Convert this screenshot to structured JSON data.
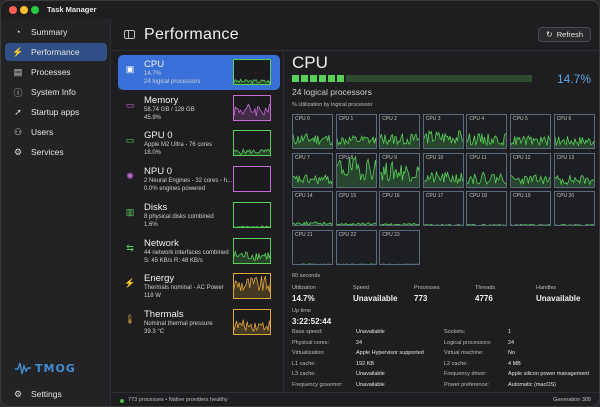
{
  "app": {
    "title": "Task Manager"
  },
  "sidebar": {
    "items": [
      {
        "label": "Summary",
        "icon": "speedometer-icon",
        "glyph": "◔"
      },
      {
        "label": "Performance",
        "icon": "activity-icon",
        "glyph": "⚡"
      },
      {
        "label": "Processes",
        "icon": "list-icon",
        "glyph": "▤"
      },
      {
        "label": "System Info",
        "icon": "info-icon",
        "glyph": "ⓘ"
      },
      {
        "label": "Startup apps",
        "icon": "rocket-icon",
        "glyph": "➚"
      },
      {
        "label": "Users",
        "icon": "users-icon",
        "glyph": "⚇"
      },
      {
        "label": "Services",
        "icon": "gear-icon",
        "glyph": "⚙"
      }
    ],
    "logo_text": "TMOG",
    "settings_label": "Settings",
    "settings_glyph": "⚙"
  },
  "header": {
    "title": "Performance",
    "refresh_label": "Refresh",
    "refresh_glyph": "↻"
  },
  "resources": [
    {
      "name": "CPU",
      "line1": "14.7%",
      "line2": "24 logical processors",
      "icon": "cpu-icon",
      "glyph": "▣",
      "color": "#58d15a"
    },
    {
      "name": "Memory",
      "line1": "58.74 GB / 128 GB",
      "line2": "45.9%",
      "icon": "memory-icon",
      "glyph": "▭",
      "color": "#c86ad8"
    },
    {
      "name": "GPU 0",
      "line1": "Apple M2 Ultra - 76 cores",
      "line2": "18.0%",
      "icon": "gpu-icon",
      "glyph": "▭",
      "color": "#58d15a"
    },
    {
      "name": "NPU 0",
      "line1": "2 Neural Engines - 32 cores - h...",
      "line2": "0.0% engines powered",
      "icon": "brain-icon",
      "glyph": "✺",
      "color": "#c86ad8"
    },
    {
      "name": "Disks",
      "line1": "8 physical disks combined",
      "line2": "1.6%",
      "icon": "disk-icon",
      "glyph": "▥",
      "color": "#58d15a"
    },
    {
      "name": "Network",
      "line1": "44 network interfaces combined",
      "line2": "S: 45 KB/s  R: 48 KB/s",
      "icon": "network-icon",
      "glyph": "⇆",
      "color": "#58d15a"
    },
    {
      "name": "Energy",
      "line1": "Thermals nominal - AC Power",
      "line2": "118 W",
      "icon": "bolt-icon",
      "glyph": "⚡",
      "color": "#e0a43a"
    },
    {
      "name": "Thermals",
      "line1": "Nominal thermal pressure",
      "line2": "39.3 °C",
      "icon": "thermometer-icon",
      "glyph": "🌡",
      "color": "#e0a43a"
    }
  ],
  "cpu": {
    "title": "CPU",
    "percent": "14.7%",
    "percent_value": 14.7,
    "subtitle": "24 logical processors",
    "util_label": "% Utilization by logical processor",
    "window_label": "60 seconds",
    "cores": [
      "CPU 0",
      "CPU 1",
      "CPU 2",
      "CPU 3",
      "CPU 4",
      "CPU 5",
      "CPU 6",
      "CPU 7",
      "CPU 8",
      "CPU 9",
      "CPU 10",
      "CPU 11",
      "CPU 12",
      "CPU 13",
      "CPU 14",
      "CPU 15",
      "CPU 16",
      "CPU 17",
      "CPU 18",
      "CPU 19",
      "CPU 20",
      "CPU 21",
      "CPU 22",
      "CPU 23"
    ],
    "core_levels": [
      0.3,
      0.25,
      0.3,
      0.35,
      0.3,
      0.25,
      0.25,
      0.25,
      0.6,
      0.5,
      0.3,
      0.3,
      0.25,
      0.25,
      0.08,
      0.06,
      0.05,
      0.03,
      0.03,
      0.03,
      0.03,
      0.02,
      0.02,
      0.02
    ],
    "stats": [
      {
        "label": "Utilization",
        "value": "14.7%"
      },
      {
        "label": "Speed",
        "value": "Unavailable"
      },
      {
        "label": "Processes",
        "value": "773"
      },
      {
        "label": "Threads",
        "value": "4776"
      },
      {
        "label": "Handles",
        "value": "Unavailable"
      }
    ],
    "uptime": {
      "label": "Up time",
      "value": "3:22:52:44"
    },
    "details_left": [
      {
        "label": "Base speed:",
        "value": "Unavailable"
      },
      {
        "label": "Physical cores:",
        "value": "24"
      },
      {
        "label": "Virtualization:",
        "value": "Apple Hypervisor supported"
      },
      {
        "label": "L1 cache:",
        "value": "192 KB"
      },
      {
        "label": "L3 cache:",
        "value": "Unavailable"
      },
      {
        "label": "Frequency governor:",
        "value": "Unavailable"
      }
    ],
    "details_right": [
      {
        "label": "Sockets:",
        "value": "1"
      },
      {
        "label": "Logical processors:",
        "value": "24"
      },
      {
        "label": "Virtual machine:",
        "value": "No"
      },
      {
        "label": "L2 cache:",
        "value": "4 MB"
      },
      {
        "label": "Frequency driver:",
        "value": "Apple silicon power management"
      },
      {
        "label": "Power preference:",
        "value": "Automatic (macOS)"
      }
    ]
  },
  "statusbar": {
    "left": "773 processes • Native providers healthy",
    "right": "Generation 388"
  },
  "colors": {
    "accent": "#3a71d9",
    "cpu_green": "#58d15a",
    "percent_blue": "#58a8e8"
  }
}
